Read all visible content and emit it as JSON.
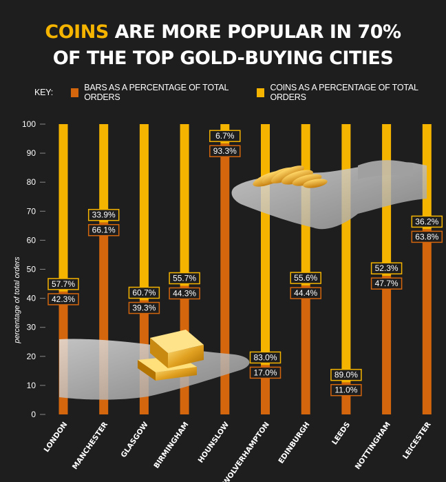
{
  "title": {
    "accent": "COINS",
    "line1_rest": " ARE MORE POPULAR IN 70%",
    "line2": "OF THE TOP GOLD-BUYING CITIES"
  },
  "key": {
    "label": "KEY:",
    "bars_label": "BARS AS A PERCENTAGE OF TOTAL ORDERS",
    "coins_label": "COINS AS A PERCENTAGE OF TOTAL ORDERS"
  },
  "colors": {
    "bars": "#d4660e",
    "coins": "#f5b400",
    "background": "#1e1e1e",
    "text": "#ffffff"
  },
  "chart_data": {
    "type": "bar",
    "stacked": true,
    "ylabel": "percentage of total orders",
    "ylim": [
      0,
      100
    ],
    "yticks": [
      0,
      10,
      20,
      30,
      40,
      50,
      60,
      70,
      80,
      90,
      100
    ],
    "categories": [
      "LONDON",
      "MANCHESTER",
      "GLASGOW",
      "BIRMINGHAM",
      "HOUNSLOW",
      "WOLVERHAMPTON",
      "EDINBURGH",
      "LEEDS",
      "NOTTINGHAM",
      "LEICESTER"
    ],
    "series": [
      {
        "name": "BARS AS A PERCENTAGE OF TOTAL ORDERS",
        "values": [
          42.3,
          66.1,
          39.3,
          44.3,
          93.3,
          17.0,
          44.4,
          11.0,
          47.7,
          63.8
        ],
        "labels": [
          "42.3%",
          "66.1%",
          "39.3%",
          "44.3%",
          "93.3%",
          "17.0%",
          "44.4%",
          "11.0%",
          "47.7%",
          "63.8%"
        ]
      },
      {
        "name": "COINS AS A PERCENTAGE OF TOTAL ORDERS",
        "values": [
          57.7,
          33.9,
          60.7,
          55.7,
          6.7,
          83.0,
          55.6,
          89.0,
          52.3,
          36.2
        ],
        "labels": [
          "57.7%",
          "33.9%",
          "60.7%",
          "55.7%",
          "6.7%",
          "83.0%",
          "55.6%",
          "89.0%",
          "52.3%",
          "36.2%"
        ]
      }
    ]
  }
}
